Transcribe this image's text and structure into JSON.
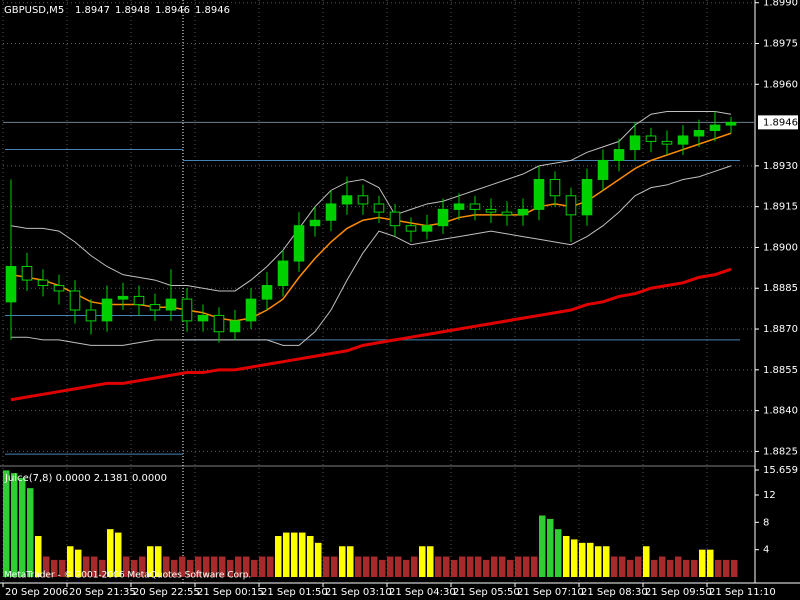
{
  "chart_data": [
    {
      "type": "candlestick",
      "title": "GBPUSD,M5",
      "header_values": [
        1.8947,
        1.8948,
        1.8946,
        1.8946
      ],
      "xlim": [
        0,
        47
      ],
      "xticks": [
        {
          "value": 0,
          "label": "20 Sep 2006"
        },
        {
          "value": 4,
          "label": "20 Sep 21:35"
        },
        {
          "value": 8,
          "label": "20 Sep 22:55"
        },
        {
          "value": 12,
          "label": "21 Sep 00:15"
        },
        {
          "value": 16,
          "label": "21 Sep 01:50"
        },
        {
          "value": 20,
          "label": "21 Sep 03:10"
        },
        {
          "value": 24,
          "label": "21 Sep 04:30"
        },
        {
          "value": 28,
          "label": "21 Sep 05:50"
        },
        {
          "value": 32,
          "label": "21 Sep 07:10"
        },
        {
          "value": 36,
          "label": "21 Sep 08:30"
        },
        {
          "value": 40,
          "label": "21 Sep 09:50"
        },
        {
          "value": 44,
          "label": "21 Sep 11:10"
        }
      ],
      "ylim": [
        1.882,
        1.8991
      ],
      "yticks": [
        {
          "value": 1.899,
          "label": "1.8990"
        },
        1.8975,
        {
          "value": 1.896,
          "label": "1.8960"
        },
        {
          "value": 1.893,
          "label": "1.8930"
        },
        1.8915,
        {
          "value": 1.89,
          "label": "1.8900"
        },
        1.8885,
        {
          "value": 1.887,
          "label": "1.8870"
        },
        1.8855,
        {
          "value": 1.884,
          "label": "1.8840"
        },
        1.8825
      ],
      "grid": true,
      "current_price": 1.8946,
      "period_separators": [
        11.25
      ],
      "up_color": "#00d000",
      "down_color": "#000000",
      "level_color": "#4682b4",
      "prev_day_levels": [
        1.8936,
        1.8875,
        1.8824
      ],
      "day_levels": [
        1.8932,
        1.8866
      ],
      "open": [
        1.888,
        1.8893,
        1.8888,
        1.8886,
        1.8884,
        1.8877,
        1.8873,
        1.8881,
        1.8882,
        1.8879,
        1.8877,
        1.8881,
        1.8873,
        1.8875,
        1.8869,
        1.8873,
        1.8881,
        1.8886,
        1.8895,
        1.8908,
        1.891,
        1.8916,
        1.8919,
        1.8916,
        1.8913,
        1.8908,
        1.8906,
        1.8908,
        1.8914,
        1.8916,
        1.8914,
        1.8913,
        1.8912,
        1.8914,
        1.8925,
        1.8919,
        1.8912,
        1.8925,
        1.8932,
        1.8936,
        1.8941,
        1.8939,
        1.8938,
        1.8941,
        1.8943,
        1.8945
      ],
      "high": [
        1.8925,
        1.8898,
        1.8892,
        1.889,
        1.8888,
        1.8881,
        1.8886,
        1.8887,
        1.8886,
        1.8883,
        1.8892,
        1.8885,
        1.8879,
        1.8878,
        1.8877,
        1.8885,
        1.8891,
        1.8899,
        1.8913,
        1.8915,
        1.8921,
        1.8926,
        1.8923,
        1.8919,
        1.8916,
        1.8911,
        1.8912,
        1.8918,
        1.892,
        1.8919,
        1.8918,
        1.8917,
        1.8918,
        1.893,
        1.8928,
        1.8922,
        1.8929,
        1.8936,
        1.894,
        1.8946,
        1.8944,
        1.8943,
        1.8945,
        1.8947,
        1.895,
        1.8948
      ],
      "low": [
        1.8866,
        1.8884,
        1.8882,
        1.8879,
        1.8872,
        1.8868,
        1.8869,
        1.8877,
        1.8875,
        1.8873,
        1.8873,
        1.8869,
        1.8869,
        1.8865,
        1.8866,
        1.887,
        1.8877,
        1.8882,
        1.8891,
        1.8904,
        1.8906,
        1.8912,
        1.8912,
        1.8909,
        1.8904,
        1.8902,
        1.8903,
        1.8905,
        1.891,
        1.891,
        1.8909,
        1.8908,
        1.8908,
        1.891,
        1.8915,
        1.8902,
        1.8908,
        1.8921,
        1.8928,
        1.8932,
        1.8935,
        1.8934,
        1.8934,
        1.8937,
        1.8939,
        1.8942
      ],
      "close": [
        1.8893,
        1.8888,
        1.8886,
        1.8884,
        1.8877,
        1.8873,
        1.8881,
        1.8882,
        1.8879,
        1.8877,
        1.8881,
        1.8873,
        1.8875,
        1.8869,
        1.8873,
        1.8881,
        1.8886,
        1.8895,
        1.8908,
        1.891,
        1.8916,
        1.8919,
        1.8916,
        1.8913,
        1.8908,
        1.8906,
        1.8908,
        1.8914,
        1.8916,
        1.8914,
        1.8913,
        1.8912,
        1.8914,
        1.8925,
        1.8919,
        1.8912,
        1.8925,
        1.8932,
        1.8936,
        1.8941,
        1.8939,
        1.8938,
        1.8941,
        1.8943,
        1.8945,
        1.8946
      ],
      "overlays": [
        {
          "color": "#c0c0c0",
          "width": 1,
          "values": [
            1.8908,
            1.8907,
            1.8907,
            1.8906,
            1.8902,
            1.8897,
            1.8893,
            1.889,
            1.8889,
            1.8888,
            1.8886,
            1.8886,
            1.8885,
            1.8884,
            1.8884,
            1.8888,
            1.8893,
            1.8899,
            1.8907,
            1.8915,
            1.8921,
            1.8924,
            1.8925,
            1.8922,
            1.8912,
            1.8914,
            1.8916,
            1.8917,
            1.8919,
            1.8921,
            1.8923,
            1.8925,
            1.8927,
            1.893,
            1.8931,
            1.8932,
            1.8935,
            1.8937,
            1.8939,
            1.8945,
            1.8949,
            1.895,
            1.895,
            1.895,
            1.895,
            1.8949
          ]
        },
        {
          "color": "#c0c0c0",
          "width": 1,
          "values": [
            1.8867,
            1.8867,
            1.8866,
            1.8866,
            1.8865,
            1.8864,
            1.8864,
            1.8864,
            1.8865,
            1.8866,
            1.8866,
            1.8866,
            1.8866,
            1.8866,
            1.8866,
            1.8866,
            1.8866,
            1.8864,
            1.8864,
            1.8869,
            1.8877,
            1.8888,
            1.8898,
            1.8906,
            1.8904,
            1.8901,
            1.8902,
            1.8903,
            1.8904,
            1.8905,
            1.8906,
            1.8905,
            1.8904,
            1.8903,
            1.8902,
            1.8901,
            1.8904,
            1.8908,
            1.8913,
            1.8919,
            1.8922,
            1.8923,
            1.8925,
            1.8926,
            1.8928,
            1.893
          ]
        },
        {
          "color": "#ff8c00",
          "width": 1.5,
          "values": [
            1.889,
            1.8889,
            1.8888,
            1.8886,
            1.8883,
            1.888,
            1.8879,
            1.8879,
            1.8879,
            1.8878,
            1.8878,
            1.8877,
            1.8876,
            1.8874,
            1.8873,
            1.8874,
            1.8877,
            1.8881,
            1.8889,
            1.8896,
            1.8902,
            1.8907,
            1.891,
            1.8911,
            1.891,
            1.8909,
            1.8908,
            1.8909,
            1.8911,
            1.8912,
            1.8912,
            1.8912,
            1.8912,
            1.8915,
            1.8916,
            1.8915,
            1.8917,
            1.8921,
            1.8925,
            1.8929,
            1.8932,
            1.8934,
            1.8936,
            1.8938,
            1.894,
            1.8942
          ]
        },
        {
          "color": "#e00000",
          "width": 3,
          "values": [
            1.8844,
            1.8845,
            1.8846,
            1.8847,
            1.8848,
            1.8849,
            1.885,
            1.885,
            1.8851,
            1.8852,
            1.8853,
            1.8854,
            1.8854,
            1.8855,
            1.8855,
            1.8856,
            1.8857,
            1.8858,
            1.8859,
            1.886,
            1.8861,
            1.8862,
            1.8864,
            1.8865,
            1.8866,
            1.8867,
            1.8868,
            1.8869,
            1.887,
            1.8871,
            1.8872,
            1.8873,
            1.8874,
            1.8875,
            1.8876,
            1.8877,
            1.8879,
            1.888,
            1.8882,
            1.8883,
            1.8885,
            1.8886,
            1.8887,
            1.8889,
            1.889,
            1.8892
          ]
        }
      ]
    },
    {
      "type": "histogram-indicator",
      "title": "Juice(7,8) 0.0000 2.1381 0.0000",
      "copyright": "MetaTrader - © 2001-2006 MetaQuotes Software Corp.",
      "ylim": [
        0,
        15.659
      ],
      "yticks": [
        15.659,
        12,
        8,
        4
      ],
      "values": [
        15.6,
        15.2,
        14.5,
        13,
        6,
        3,
        2.5,
        2.5,
        4.5,
        4,
        3,
        3,
        2.5,
        7,
        6.5,
        3,
        2.5,
        3,
        4.5,
        4.5,
        3,
        2.5,
        3,
        2.5,
        3,
        3,
        3,
        3,
        2.5,
        3,
        3,
        2.5,
        3,
        3,
        6,
        6.5,
        6.5,
        6.5,
        6,
        5,
        3,
        3,
        4.5,
        4.5,
        3,
        3,
        3,
        2.5,
        3,
        3,
        2.5,
        3,
        4.5,
        4.5,
        3,
        3,
        2.5,
        3,
        3,
        3,
        2.5,
        3,
        3,
        2.5,
        3,
        3,
        3,
        9,
        8.5,
        7,
        6,
        5.5,
        5,
        5,
        4.5,
        4.5,
        3,
        3,
        2.5,
        3,
        4.5,
        2.5,
        3,
        2.5,
        3,
        2.5,
        2.5,
        4,
        4,
        2.5,
        2.5,
        2.5
      ],
      "colors": [
        "#32cd32",
        "#32cd32",
        "#32cd32",
        "#32cd32",
        "#ffff00",
        "#a52a2a",
        "#a52a2a",
        "#a52a2a",
        "#ffff00",
        "#ffff00",
        "#a52a2a",
        "#a52a2a",
        "#a52a2a",
        "#ffff00",
        "#ffff00",
        "#a52a2a",
        "#a52a2a",
        "#a52a2a",
        "#ffff00",
        "#ffff00",
        "#a52a2a",
        "#a52a2a",
        "#a52a2a",
        "#a52a2a",
        "#a52a2a",
        "#a52a2a",
        "#a52a2a",
        "#a52a2a",
        "#a52a2a",
        "#a52a2a",
        "#a52a2a",
        "#a52a2a",
        "#a52a2a",
        "#a52a2a",
        "#ffff00",
        "#ffff00",
        "#ffff00",
        "#ffff00",
        "#ffff00",
        "#ffff00",
        "#a52a2a",
        "#a52a2a",
        "#ffff00",
        "#ffff00",
        "#a52a2a",
        "#a52a2a",
        "#a52a2a",
        "#a52a2a",
        "#a52a2a",
        "#a52a2a",
        "#a52a2a",
        "#a52a2a",
        "#ffff00",
        "#ffff00",
        "#a52a2a",
        "#a52a2a",
        "#a52a2a",
        "#a52a2a",
        "#a52a2a",
        "#a52a2a",
        "#a52a2a",
        "#a52a2a",
        "#a52a2a",
        "#a52a2a",
        "#a52a2a",
        "#a52a2a",
        "#a52a2a",
        "#32cd32",
        "#32cd32",
        "#32cd32",
        "#ffff00",
        "#ffff00",
        "#ffff00",
        "#ffff00",
        "#ffff00",
        "#ffff00",
        "#a52a2a",
        "#a52a2a",
        "#a52a2a",
        "#a52a2a",
        "#ffff00",
        "#a52a2a",
        "#a52a2a",
        "#a52a2a",
        "#a52a2a",
        "#a52a2a",
        "#a52a2a",
        "#ffff00",
        "#ffff00",
        "#a52a2a",
        "#a52a2a",
        "#a52a2a"
      ]
    }
  ]
}
